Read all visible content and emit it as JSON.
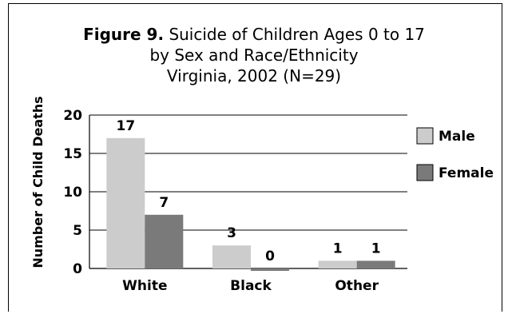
{
  "chart_data": {
    "type": "bar",
    "title": {
      "prefix": "Figure 9.",
      "line1": "Suicide of Children Ages 0 to 17",
      "line2": "by Sex and Race/Ethnicity",
      "line3": "Virginia, 2002 (N=29)"
    },
    "xlabel": "",
    "ylabel": "Number of Child Deaths",
    "categories": [
      "White",
      "Black",
      "Other"
    ],
    "series": [
      {
        "name": "Male",
        "values": [
          17,
          3,
          1
        ],
        "color": "#cccccc"
      },
      {
        "name": "Female",
        "values": [
          7,
          0,
          1
        ],
        "color": "#7a7a7a"
      }
    ],
    "data_labels": [
      [
        "17",
        "3",
        "1"
      ],
      [
        "7",
        "0",
        "1"
      ]
    ],
    "y_ticks": [
      "0",
      "5",
      "10",
      "15",
      "20"
    ],
    "ylim": [
      0,
      20
    ],
    "grid": true,
    "legend_position": "right"
  }
}
